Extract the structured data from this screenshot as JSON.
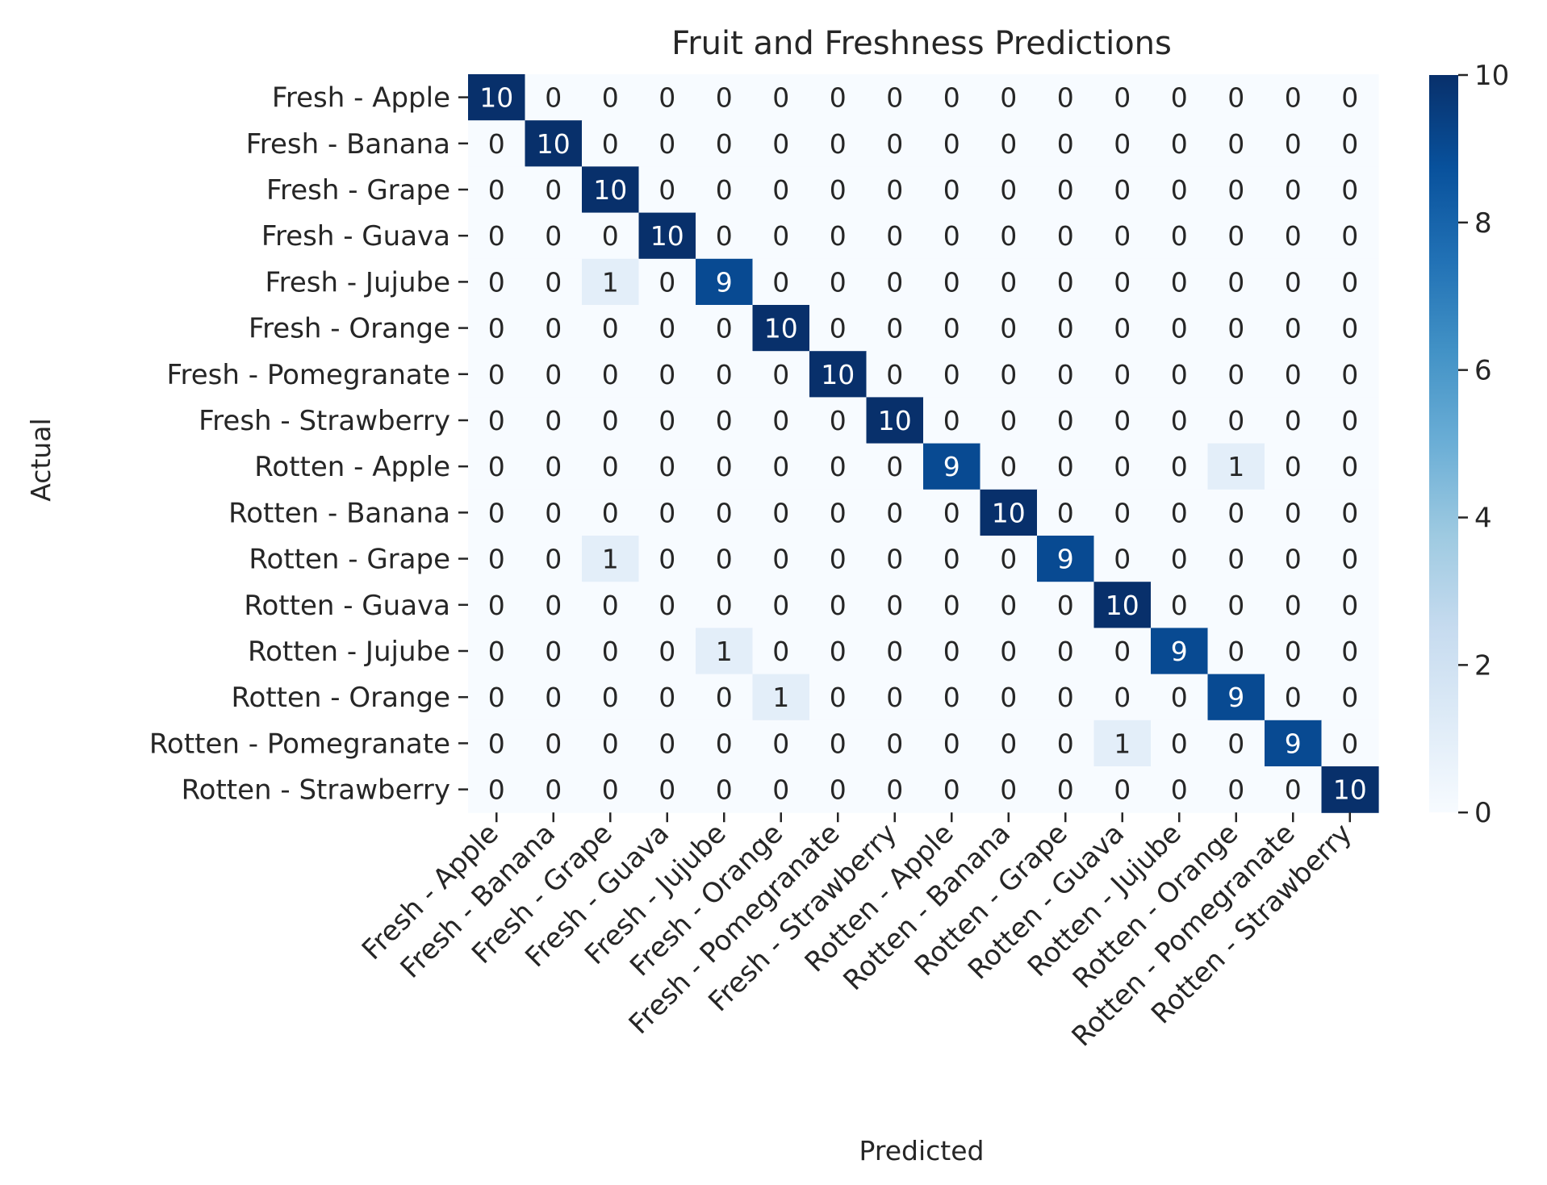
{
  "chart_data": {
    "type": "heatmap",
    "title": "Fruit and Freshness Predictions",
    "xlabel": "Predicted",
    "ylabel": "Actual",
    "x_categories": [
      "Fresh - Apple",
      "Fresh - Banana",
      "Fresh - Grape",
      "Fresh - Guava",
      "Fresh - Jujube",
      "Fresh - Orange",
      "Fresh - Pomegranate",
      "Fresh - Strawberry",
      "Rotten - Apple",
      "Rotten - Banana",
      "Rotten - Grape",
      "Rotten - Guava",
      "Rotten - Jujube",
      "Rotten - Orange",
      "Rotten - Pomegranate",
      "Rotten - Strawberry"
    ],
    "y_categories": [
      "Fresh - Apple",
      "Fresh - Banana",
      "Fresh - Grape",
      "Fresh - Guava",
      "Fresh - Jujube",
      "Fresh - Orange",
      "Fresh - Pomegranate",
      "Fresh - Strawberry",
      "Rotten - Apple",
      "Rotten - Banana",
      "Rotten - Grape",
      "Rotten - Guava",
      "Rotten - Jujube",
      "Rotten - Orange",
      "Rotten - Pomegranate",
      "Rotten - Strawberry"
    ],
    "values": [
      [
        10,
        0,
        0,
        0,
        0,
        0,
        0,
        0,
        0,
        0,
        0,
        0,
        0,
        0,
        0,
        0
      ],
      [
        0,
        10,
        0,
        0,
        0,
        0,
        0,
        0,
        0,
        0,
        0,
        0,
        0,
        0,
        0,
        0
      ],
      [
        0,
        0,
        10,
        0,
        0,
        0,
        0,
        0,
        0,
        0,
        0,
        0,
        0,
        0,
        0,
        0
      ],
      [
        0,
        0,
        0,
        10,
        0,
        0,
        0,
        0,
        0,
        0,
        0,
        0,
        0,
        0,
        0,
        0
      ],
      [
        0,
        0,
        1,
        0,
        9,
        0,
        0,
        0,
        0,
        0,
        0,
        0,
        0,
        0,
        0,
        0
      ],
      [
        0,
        0,
        0,
        0,
        0,
        10,
        0,
        0,
        0,
        0,
        0,
        0,
        0,
        0,
        0,
        0
      ],
      [
        0,
        0,
        0,
        0,
        0,
        0,
        10,
        0,
        0,
        0,
        0,
        0,
        0,
        0,
        0,
        0
      ],
      [
        0,
        0,
        0,
        0,
        0,
        0,
        0,
        10,
        0,
        0,
        0,
        0,
        0,
        0,
        0,
        0
      ],
      [
        0,
        0,
        0,
        0,
        0,
        0,
        0,
        0,
        9,
        0,
        0,
        0,
        0,
        1,
        0,
        0
      ],
      [
        0,
        0,
        0,
        0,
        0,
        0,
        0,
        0,
        0,
        10,
        0,
        0,
        0,
        0,
        0,
        0
      ],
      [
        0,
        0,
        1,
        0,
        0,
        0,
        0,
        0,
        0,
        0,
        9,
        0,
        0,
        0,
        0,
        0
      ],
      [
        0,
        0,
        0,
        0,
        0,
        0,
        0,
        0,
        0,
        0,
        0,
        10,
        0,
        0,
        0,
        0
      ],
      [
        0,
        0,
        0,
        0,
        1,
        0,
        0,
        0,
        0,
        0,
        0,
        0,
        9,
        0,
        0,
        0
      ],
      [
        0,
        0,
        0,
        0,
        0,
        1,
        0,
        0,
        0,
        0,
        0,
        0,
        0,
        9,
        0,
        0
      ],
      [
        0,
        0,
        0,
        0,
        0,
        0,
        0,
        0,
        0,
        0,
        0,
        1,
        0,
        0,
        9,
        0
      ],
      [
        0,
        0,
        0,
        0,
        0,
        0,
        0,
        0,
        0,
        0,
        0,
        0,
        0,
        0,
        0,
        10
      ]
    ],
    "colorbar": {
      "min": 0,
      "max": 10,
      "ticks": [
        0,
        2,
        4,
        6,
        8,
        10
      ]
    },
    "colormap": "Blues",
    "colors": {
      "low": "#f7fbff",
      "high": "#08306b",
      "text_dark": "#262626",
      "text_light": "#ffffff"
    },
    "grid": false,
    "legend": "none"
  }
}
